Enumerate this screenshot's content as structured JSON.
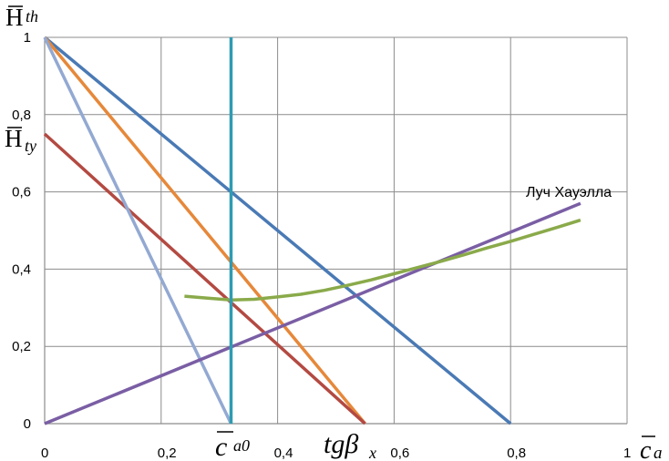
{
  "chart_data": {
    "type": "line",
    "xlim": [
      0,
      1
    ],
    "ylim": [
      0,
      1
    ],
    "x_ticks": [
      "0",
      "0,2",
      "0,4",
      "0,6",
      "0,8",
      "1"
    ],
    "y_ticks": [
      "0",
      "0,2",
      "0,4",
      "0,6",
      "0,8",
      "1"
    ],
    "grid": true,
    "colors": {
      "grid": "#8c8c8c",
      "axis": "#8c8c8c",
      "blue": "#4a7ab5",
      "orange": "#e6883a",
      "red": "#b34a42",
      "lightblue": "#93a9d2",
      "purple": "#7a5ea4",
      "green": "#8aaa4a",
      "teal": "#2e9cb3"
    },
    "series": [
      {
        "color": "blue",
        "points": [
          [
            0,
            1
          ],
          [
            0.8,
            0
          ]
        ]
      },
      {
        "color": "orange",
        "points": [
          [
            0,
            1
          ],
          [
            0.55,
            0
          ]
        ]
      },
      {
        "color": "red",
        "points": [
          [
            0,
            0.75
          ],
          [
            0.55,
            0
          ]
        ]
      },
      {
        "color": "lightblue",
        "points": [
          [
            0,
            1
          ],
          [
            0.32,
            0
          ]
        ]
      },
      {
        "color": "purple",
        "points": [
          [
            0,
            0
          ],
          [
            0.92,
            0.57
          ]
        ]
      },
      {
        "color": "green",
        "points": [
          [
            0.24,
            0.33
          ],
          [
            0.28,
            0.325
          ],
          [
            0.32,
            0.32
          ],
          [
            0.36,
            0.322
          ],
          [
            0.4,
            0.328
          ],
          [
            0.44,
            0.335
          ],
          [
            0.48,
            0.345
          ],
          [
            0.52,
            0.358
          ],
          [
            0.56,
            0.372
          ],
          [
            0.6,
            0.388
          ],
          [
            0.64,
            0.404
          ],
          [
            0.68,
            0.42
          ],
          [
            0.72,
            0.437
          ],
          [
            0.76,
            0.455
          ],
          [
            0.8,
            0.472
          ],
          [
            0.84,
            0.49
          ],
          [
            0.88,
            0.508
          ],
          [
            0.92,
            0.527
          ]
        ]
      },
      {
        "color": "teal",
        "points": [
          [
            0.32,
            0
          ],
          [
            0.32,
            1
          ]
        ]
      }
    ],
    "annotations": {
      "ray_label": "Луч Хауэлла",
      "y_top_main": "H",
      "y_top_sub": "th",
      "y_mid_main": "H",
      "y_mid_sub": "ty",
      "x_ca0_main": "c",
      "x_ca0_sub": "a0",
      "x_tg_main": "tgβ",
      "x_tg_sub": "x",
      "x_axis_main": "c",
      "x_axis_sub": "a"
    }
  }
}
